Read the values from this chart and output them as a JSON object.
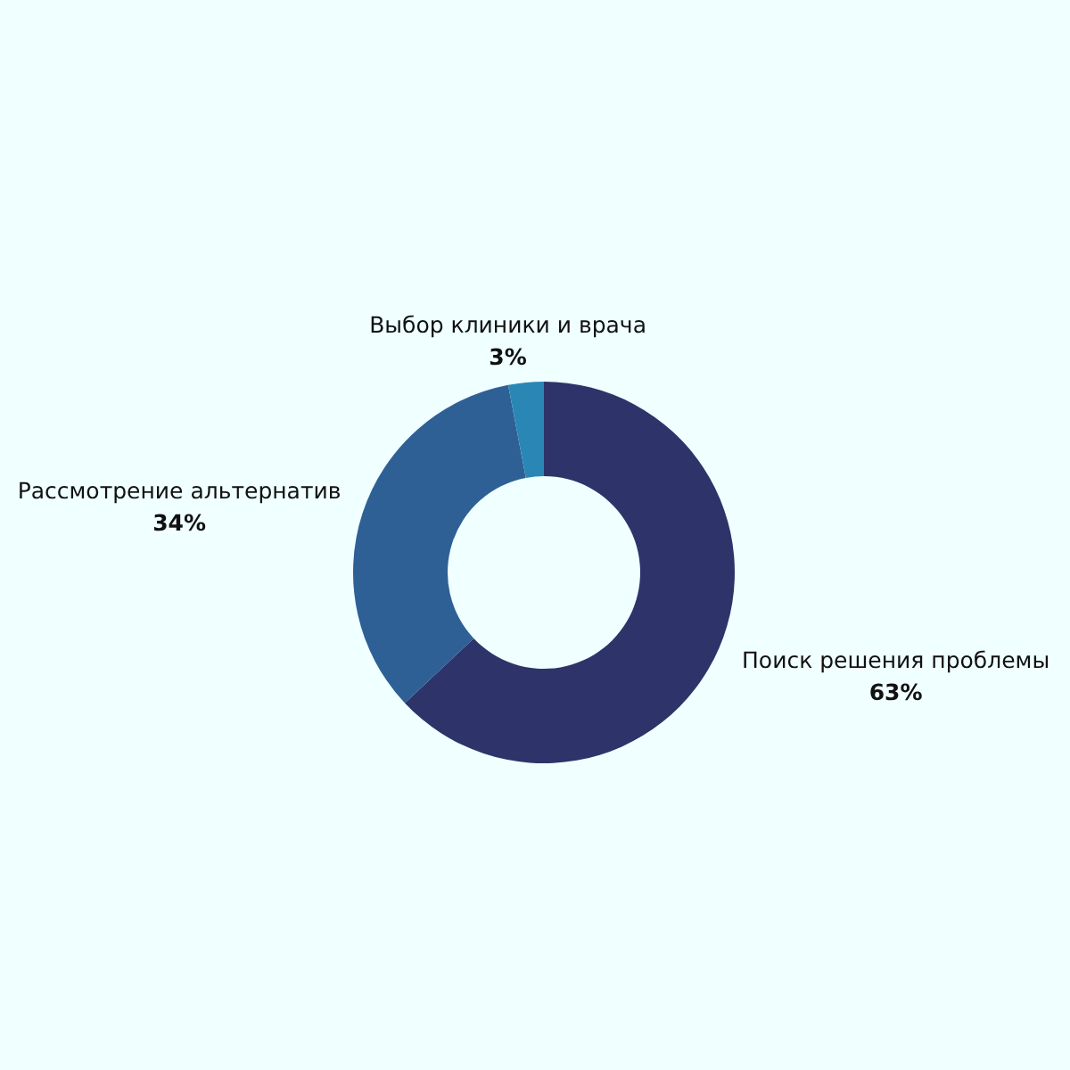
{
  "chart_data": {
    "type": "donut",
    "categories": [
      "Поиск решения проблемы",
      "Рассмотрение альтернатив",
      "Выбор клиники и врача"
    ],
    "values": [
      63,
      34,
      3
    ],
    "colors": [
      "#2e3369",
      "#2e6096",
      "#2a87b5"
    ],
    "value_labels": [
      "63%",
      "34%",
      "3%"
    ]
  }
}
